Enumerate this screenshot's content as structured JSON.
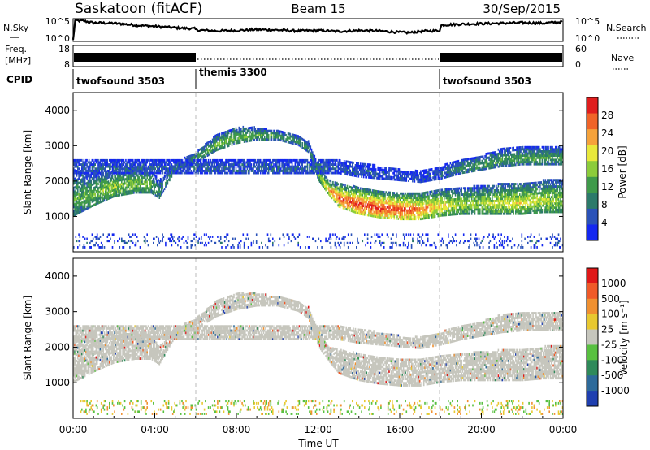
{
  "header": {
    "station": "Saskatoon (fitACF)",
    "beam": "Beam 15",
    "date": "30/Sep/2015"
  },
  "colors": {
    "axis": "#000000",
    "divider": "#bbbbbb",
    "ground_scatter": "#c6c6bd",
    "power_scale": [
      "#1428f0",
      "#2a52b8",
      "#2c7a6a",
      "#3f9a4a",
      "#8ccc3a",
      "#e8e83a",
      "#f5a23a",
      "#f06428",
      "#e01e1e"
    ],
    "velocity_scale": [
      "#1f3fb0",
      "#2d6a9a",
      "#2f8a5a",
      "#58c040",
      "#c6c6bd",
      "#e8c830",
      "#f09030",
      "#f05a28",
      "#e01818"
    ]
  },
  "chart_data": [
    {
      "type": "line",
      "name": "noise",
      "labels": {
        "left": "N.Sky",
        "right": "N.Search"
      },
      "left_ticks": [
        "10^5",
        "10^0"
      ],
      "right_ticks": [
        "10^5",
        "10^0"
      ],
      "note": "log10 noise level vs hour (approx.)",
      "series": [
        {
          "x": [
            0.0,
            0.1,
            0.5,
            1,
            2,
            3,
            4,
            5,
            5.95,
            6.05,
            7,
            8,
            9,
            10,
            11,
            12,
            13,
            14,
            15,
            16,
            16.5,
            17,
            17.95,
            18.05,
            19,
            20,
            21,
            22,
            23,
            24
          ],
          "y": [
            0.3,
            4.6,
            4.5,
            4.1,
            4.0,
            3.6,
            3.3,
            3.0,
            2.8,
            2.5,
            2.3,
            2.4,
            2.6,
            2.5,
            2.3,
            2.4,
            2.2,
            2.4,
            2.3,
            2.0,
            1.9,
            2.2,
            2.4,
            3.6,
            3.8,
            3.9,
            4.0,
            4.1,
            4.0,
            4.3
          ]
        }
      ]
    },
    {
      "type": "line",
      "name": "frequency",
      "labels": {
        "left_top": "Freq.",
        "left_bottom": "[MHz]",
        "right": "Nave"
      },
      "left_ticks": [
        "18",
        "8"
      ],
      "right_ticks": [
        "60",
        "0"
      ],
      "note": "twofsound intervals alternate 10-13 MHz; themis interval near 10 MHz"
    },
    {
      "type": "table",
      "name": "cpid",
      "label": "CPID",
      "segments": [
        {
          "start": 0,
          "end": 6,
          "label": "twofsound 3503"
        },
        {
          "start": 6,
          "end": 18,
          "label": "themis 3300"
        },
        {
          "start": 18,
          "end": 24,
          "label": "twofsound 3503"
        }
      ]
    },
    {
      "type": "heatmap",
      "name": "power",
      "ylabel": "Slant Range [km]",
      "yticks": [
        "1000",
        "2000",
        "3000",
        "4000"
      ],
      "ylim": [
        0,
        4500
      ],
      "xlim": [
        0,
        24
      ],
      "colorbar": {
        "label": "Power [dB]",
        "ticks": [
          "4",
          "8",
          "12",
          "16",
          "20",
          "24",
          "28"
        ],
        "range": [
          0,
          30
        ]
      },
      "scatter_bands": [
        {
          "x": [
            0,
            1,
            2,
            3,
            3.8,
            4.2,
            5,
            6,
            7,
            8,
            9,
            10,
            11,
            11.5,
            12,
            12.5,
            13,
            14,
            15,
            16,
            17,
            18,
            19,
            20,
            21,
            22,
            23,
            24
          ],
          "lo": [
            1000,
            1300,
            1550,
            1650,
            1650,
            1500,
            2300,
            2500,
            2850,
            3050,
            3150,
            3150,
            3000,
            2800,
            2000,
            1600,
            1250,
            1050,
            950,
            900,
            900,
            1000,
            1050,
            1050,
            1050,
            1050,
            1100,
            1100
          ],
          "hi": [
            2300,
            2200,
            2300,
            2400,
            2300,
            2000,
            2500,
            2800,
            3300,
            3500,
            3500,
            3400,
            3300,
            3100,
            2400,
            2000,
            1900,
            1800,
            1700,
            1650,
            1650,
            1750,
            1800,
            1850,
            1900,
            1950,
            2000,
            2050
          ],
          "peak_db": [
            12,
            14,
            16,
            14,
            13,
            10,
            10,
            12,
            14,
            14,
            13,
            12,
            10,
            10,
            16,
            22,
            26,
            28,
            28,
            27,
            25,
            20,
            16,
            16,
            18,
            18,
            17,
            16
          ]
        },
        {
          "x": [
            13,
            14,
            15,
            16,
            17,
            18,
            19,
            20,
            21,
            22,
            23,
            24
          ],
          "lo": [
            2200,
            2100,
            2050,
            2000,
            1950,
            2050,
            2200,
            2300,
            2400,
            2450,
            2450,
            2450
          ],
          "hi": [
            2600,
            2500,
            2400,
            2300,
            2250,
            2400,
            2600,
            2700,
            2900,
            2950,
            2950,
            2950
          ],
          "peak_db": [
            6,
            6,
            5,
            5,
            5,
            6,
            10,
            12,
            12,
            12,
            12,
            12
          ]
        },
        {
          "x": [
            0,
            4,
            8,
            12,
            16,
            20,
            24
          ],
          "lo": [
            100,
            100,
            100,
            100,
            100,
            100,
            100
          ],
          "hi": [
            500,
            500,
            500,
            500,
            500,
            500,
            500
          ],
          "peak_db": [
            5,
            5,
            5,
            5,
            5,
            5,
            5
          ]
        }
      ]
    },
    {
      "type": "heatmap",
      "name": "velocity",
      "ylabel": "Slant Range [km]",
      "yticks": [
        "1000",
        "2000",
        "3000",
        "4000"
      ],
      "ylim": [
        0,
        4500
      ],
      "xlim": [
        0,
        24
      ],
      "xlabel": "Time UT",
      "xticks": [
        "00:00",
        "04:00",
        "08:00",
        "12:00",
        "16:00",
        "20:00",
        "00:00"
      ],
      "colorbar": {
        "label": "Velocity [m s⁻¹]",
        "ticks": [
          "1000",
          "500",
          "100",
          "25",
          "-25",
          "-100",
          "-500",
          "-1000"
        ]
      },
      "note": "mostly ground scatter (grey, |v|<25 m/s) following same range pattern as power panel"
    }
  ]
}
